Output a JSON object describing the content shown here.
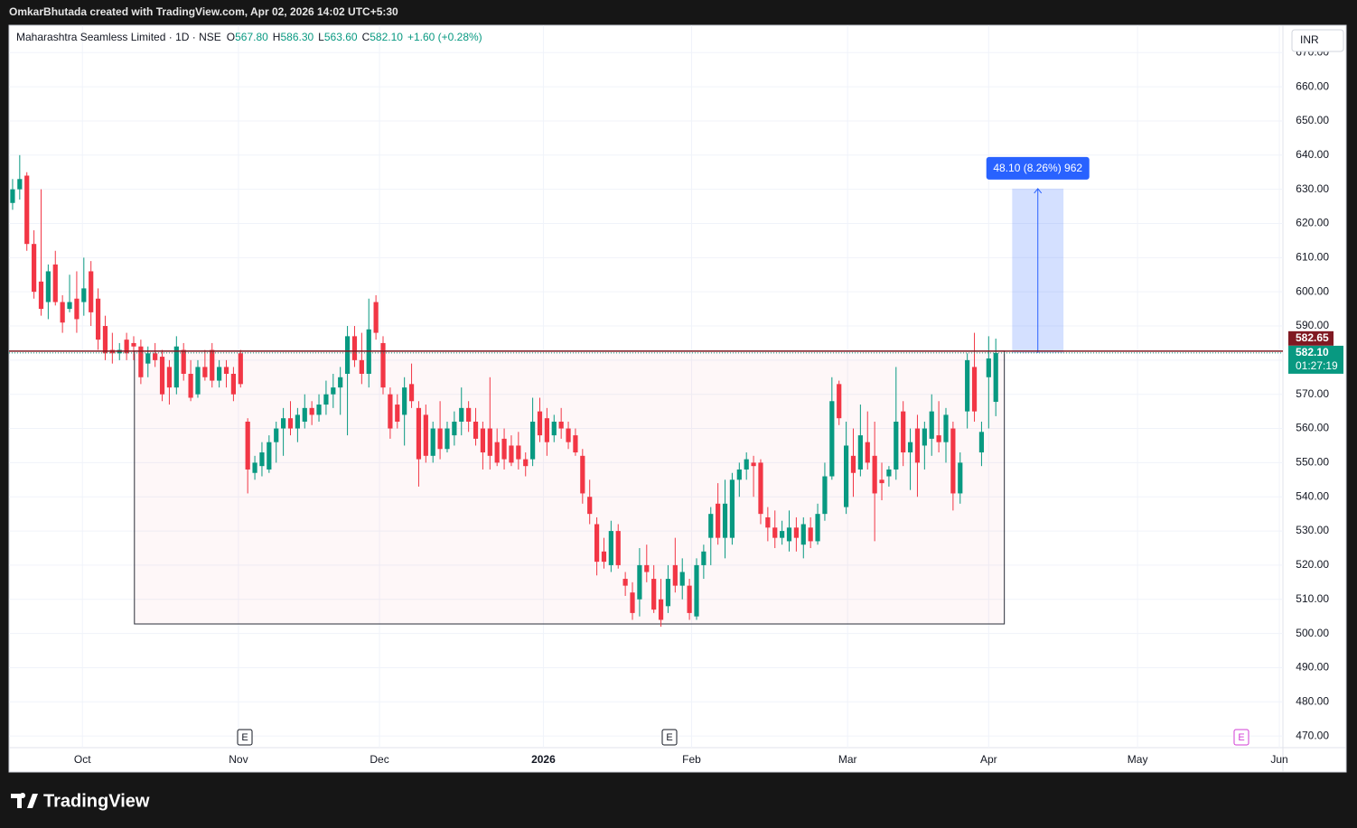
{
  "header": {
    "text": "OmkarBhutada created with TradingView.com, Apr 02, 2026 14:02 UTC+5:30"
  },
  "footer": {
    "brand": "TradingView"
  },
  "chart_data": {
    "type": "candlestick",
    "legend": {
      "symbol": "Maharashtra Seamless Limited · 1D · NSE",
      "fields": [
        {
          "key": "O",
          "value": "567.80"
        },
        {
          "key": "H",
          "value": "586.30"
        },
        {
          "key": "L",
          "value": "563.60"
        },
        {
          "key": "C",
          "value": "582.10"
        }
      ],
      "change": "+1.60 (+0.28%)"
    },
    "currency": "INR",
    "up_color": "#089981",
    "down_color": "#f23645",
    "grid": true,
    "candles": [
      [
        626,
        633,
        624,
        630
      ],
      [
        630,
        640,
        627,
        633
      ],
      [
        634,
        635,
        612,
        614
      ],
      [
        614,
        618,
        598,
        600
      ],
      [
        603,
        630,
        593,
        595
      ],
      [
        597,
        608,
        592,
        606
      ],
      [
        608,
        612,
        596,
        597
      ],
      [
        597,
        599,
        588,
        591
      ],
      [
        595,
        605,
        594,
        597
      ],
      [
        598,
        606,
        588,
        592
      ],
      [
        597,
        610,
        593,
        601
      ],
      [
        606,
        609,
        590,
        594
      ],
      [
        598,
        601,
        583,
        586
      ],
      [
        590,
        593,
        580,
        582
      ],
      [
        583,
        588,
        579,
        582
      ],
      [
        582,
        585,
        580,
        583
      ],
      [
        586,
        588,
        580,
        582
      ],
      [
        585,
        587,
        580,
        584
      ],
      [
        584,
        586,
        573,
        575
      ],
      [
        579,
        584,
        575,
        582
      ],
      [
        582,
        585,
        578,
        580
      ],
      [
        581,
        583,
        568,
        570
      ],
      [
        578,
        580,
        567,
        572
      ],
      [
        572,
        587,
        570,
        584
      ],
      [
        583,
        585,
        574,
        576
      ],
      [
        576,
        580,
        568,
        569
      ],
      [
        570,
        580,
        569,
        578
      ],
      [
        578,
        583,
        574,
        575
      ],
      [
        583,
        585,
        572,
        574
      ],
      [
        574,
        580,
        572,
        578
      ],
      [
        578,
        580,
        572,
        576
      ],
      [
        576,
        578,
        568,
        570
      ],
      [
        582,
        583,
        572,
        573
      ],
      [
        562,
        563,
        541,
        548
      ],
      [
        547,
        552,
        545,
        550
      ],
      [
        549,
        556,
        546,
        553
      ],
      [
        548,
        558,
        547,
        556
      ],
      [
        556,
        562,
        550,
        560
      ],
      [
        560,
        566,
        552,
        563
      ],
      [
        563,
        568,
        558,
        560
      ],
      [
        560,
        566,
        556,
        564
      ],
      [
        562,
        570,
        560,
        566
      ],
      [
        566,
        568,
        561,
        564
      ],
      [
        564,
        570,
        562,
        567
      ],
      [
        567,
        574,
        564,
        570
      ],
      [
        570,
        576,
        566,
        572
      ],
      [
        572,
        578,
        564,
        575
      ],
      [
        576,
        590,
        558,
        587
      ],
      [
        587,
        590,
        578,
        580
      ],
      [
        580,
        588,
        573,
        576
      ],
      [
        576,
        598,
        572,
        589
      ],
      [
        597,
        599,
        586,
        588
      ],
      [
        585,
        587,
        570,
        572
      ],
      [
        570,
        572,
        557,
        560
      ],
      [
        567,
        570,
        560,
        562
      ],
      [
        564,
        575,
        555,
        572
      ],
      [
        573,
        579,
        566,
        568
      ],
      [
        566,
        568,
        543,
        551
      ],
      [
        564,
        567,
        550,
        552
      ],
      [
        552,
        562,
        550,
        560
      ],
      [
        560,
        568,
        551,
        554
      ],
      [
        554,
        562,
        553,
        560
      ],
      [
        558,
        565,
        555,
        562
      ],
      [
        562,
        572,
        558,
        566
      ],
      [
        566,
        568,
        559,
        562
      ],
      [
        562,
        566,
        555,
        557
      ],
      [
        560,
        562,
        548,
        553
      ],
      [
        560,
        575,
        548,
        552
      ],
      [
        556,
        560,
        549,
        550
      ],
      [
        557,
        560,
        548,
        551
      ],
      [
        555,
        558,
        549,
        550
      ],
      [
        555,
        559,
        548,
        551
      ],
      [
        551,
        553,
        546,
        549
      ],
      [
        551,
        569,
        549,
        562
      ],
      [
        565,
        569,
        556,
        558
      ],
      [
        563,
        566,
        552,
        556
      ],
      [
        558,
        564,
        556,
        562
      ],
      [
        562,
        566,
        557,
        560
      ],
      [
        560,
        562,
        554,
        556
      ],
      [
        558,
        560,
        552,
        553
      ],
      [
        552,
        554,
        538,
        541
      ],
      [
        540,
        545,
        532,
        535
      ],
      [
        532,
        534,
        517,
        521
      ],
      [
        524,
        528,
        519,
        521
      ],
      [
        520,
        533,
        518,
        530
      ],
      [
        530,
        532,
        519,
        520
      ],
      [
        516,
        518,
        511,
        514
      ],
      [
        512,
        515,
        504,
        506
      ],
      [
        510,
        525,
        505,
        520
      ],
      [
        520,
        526,
        515,
        518
      ],
      [
        516,
        520,
        506,
        507
      ],
      [
        510,
        516,
        502,
        504
      ],
      [
        508,
        520,
        506,
        516
      ],
      [
        520,
        528,
        512,
        514
      ],
      [
        514,
        522,
        510,
        518
      ],
      [
        514,
        516,
        504,
        506
      ],
      [
        505,
        522,
        504,
        520
      ],
      [
        520,
        526,
        516,
        524
      ],
      [
        528,
        537,
        520,
        535
      ],
      [
        538,
        544,
        526,
        528
      ],
      [
        528,
        545,
        522,
        538
      ],
      [
        528,
        547,
        526,
        545
      ],
      [
        545,
        550,
        540,
        548
      ],
      [
        548,
        553,
        545,
        551
      ],
      [
        550,
        552,
        540,
        549
      ],
      [
        550,
        551,
        532,
        535
      ],
      [
        534,
        537,
        527,
        531
      ],
      [
        531,
        536,
        525,
        528
      ],
      [
        528,
        533,
        526,
        530
      ],
      [
        527,
        536,
        524,
        531
      ],
      [
        531,
        534,
        524,
        528
      ],
      [
        526,
        534,
        522,
        532
      ],
      [
        531,
        534,
        525,
        527
      ],
      [
        527,
        538,
        526,
        535
      ],
      [
        535,
        550,
        533,
        546
      ],
      [
        546,
        575,
        545,
        568
      ],
      [
        573,
        574,
        561,
        563
      ],
      [
        537,
        562,
        535,
        555
      ],
      [
        552,
        560,
        540,
        547
      ],
      [
        548,
        567,
        546,
        558
      ],
      [
        556,
        565,
        548,
        550
      ],
      [
        552,
        562,
        527,
        541
      ],
      [
        545,
        550,
        539,
        544
      ],
      [
        546,
        549,
        543,
        548
      ],
      [
        548,
        578,
        545,
        562
      ],
      [
        565,
        568,
        549,
        553
      ],
      [
        553,
        560,
        542,
        556
      ],
      [
        560,
        564,
        540,
        550
      ],
      [
        555,
        562,
        548,
        560
      ],
      [
        557,
        570,
        552,
        565
      ],
      [
        558,
        568,
        553,
        556
      ],
      [
        556,
        566,
        550,
        564
      ],
      [
        560,
        562,
        536,
        541
      ],
      [
        541,
        553,
        538,
        550
      ],
      [
        565,
        582,
        560,
        580
      ],
      [
        578,
        588,
        562,
        565
      ],
      [
        553,
        562,
        549,
        559
      ],
      [
        575,
        587,
        560,
        580.5
      ],
      [
        567.8,
        586.3,
        563.6,
        582.1
      ]
    ],
    "xlim": [
      -0.5,
      178.3
    ],
    "xticks": [
      {
        "value": 9.8,
        "label": "Oct"
      },
      {
        "value": 31.7,
        "label": "Nov"
      },
      {
        "value": 51.5,
        "label": "Dec"
      },
      {
        "value": 74.5,
        "label": "2026",
        "bold": true
      },
      {
        "value": 95.3,
        "label": "Feb"
      },
      {
        "value": 117.2,
        "label": "Mar"
      },
      {
        "value": 137.0,
        "label": "Apr"
      },
      {
        "value": 157.9,
        "label": "May"
      },
      {
        "value": 177.8,
        "label": "Jun"
      }
    ],
    "ylim": [
      466.6,
      678
    ],
    "yticks": [
      {
        "value": 470,
        "label": "470.00"
      },
      {
        "value": 480,
        "label": "480.00"
      },
      {
        "value": 490,
        "label": "490.00"
      },
      {
        "value": 500,
        "label": "500.00"
      },
      {
        "value": 510,
        "label": "510.00"
      },
      {
        "value": 520,
        "label": "520.00"
      },
      {
        "value": 530,
        "label": "530.00"
      },
      {
        "value": 540,
        "label": "540.00"
      },
      {
        "value": 550,
        "label": "550.00"
      },
      {
        "value": 560,
        "label": "560.00"
      },
      {
        "value": 570,
        "label": "570.00"
      },
      {
        "value": 580,
        "label": "580.00"
      },
      {
        "value": 590,
        "label": "590.00"
      },
      {
        "value": 600,
        "label": "600.00"
      },
      {
        "value": 610,
        "label": "610.00"
      },
      {
        "value": 620,
        "label": "620.00"
      },
      {
        "value": 630,
        "label": "630.00"
      },
      {
        "value": 640,
        "label": "640.00"
      },
      {
        "value": 650,
        "label": "650.00"
      },
      {
        "value": 660,
        "label": "660.00"
      },
      {
        "value": 670,
        "label": "670.00"
      }
    ],
    "rectangle": {
      "x": [
        17.1,
        139.2
      ],
      "y": [
        502.8,
        582.65
      ]
    },
    "measure": {
      "x": [
        140.3,
        147.5
      ],
      "y": [
        582.1,
        630.2
      ],
      "label": "48.10 (8.26%) 962"
    },
    "price_line": {
      "value": 582.65,
      "label": "582.65",
      "color": "#801922"
    },
    "last_price": {
      "value": 582.1,
      "label": "582.10",
      "countdown": "01:27:19"
    },
    "earnings_label": "E"
  }
}
